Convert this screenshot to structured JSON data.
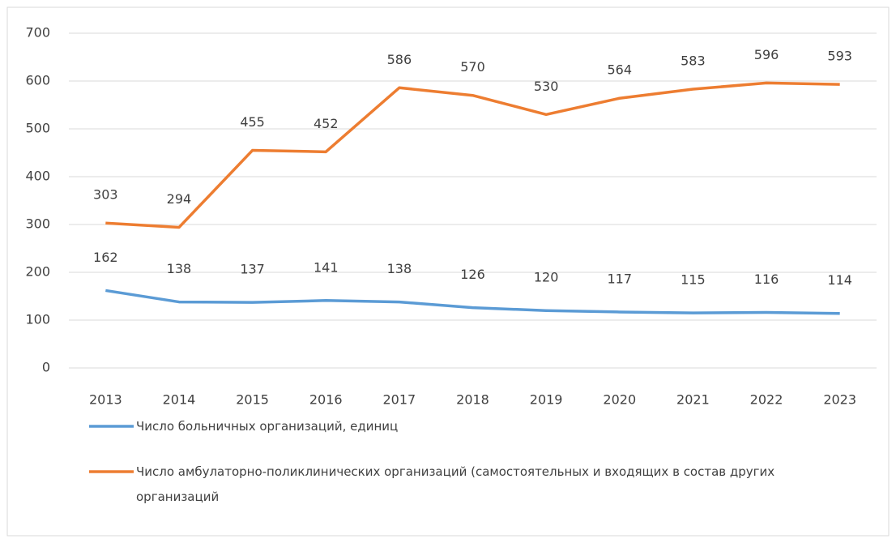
{
  "chart_data": {
    "type": "line",
    "categories": [
      "2013",
      "2014",
      "2015",
      "2016",
      "2017",
      "2018",
      "2019",
      "2020",
      "2021",
      "2022",
      "2023"
    ],
    "series": [
      {
        "name": "Число больничных организаций, единиц",
        "color": "#5b9bd5",
        "values": [
          162,
          138,
          137,
          141,
          138,
          126,
          120,
          117,
          115,
          116,
          114
        ]
      },
      {
        "name": "Число амбулаторно-поликлинических организаций (самостоятельных и входящих в состав других организаций",
        "color": "#ed7d31",
        "values": [
          303,
          294,
          455,
          452,
          586,
          570,
          530,
          564,
          583,
          596,
          593
        ]
      }
    ],
    "ylim": [
      0,
      700
    ],
    "yticks": [
      0,
      100,
      200,
      300,
      400,
      500,
      600,
      700
    ],
    "grid": true,
    "legend": "bottom"
  }
}
